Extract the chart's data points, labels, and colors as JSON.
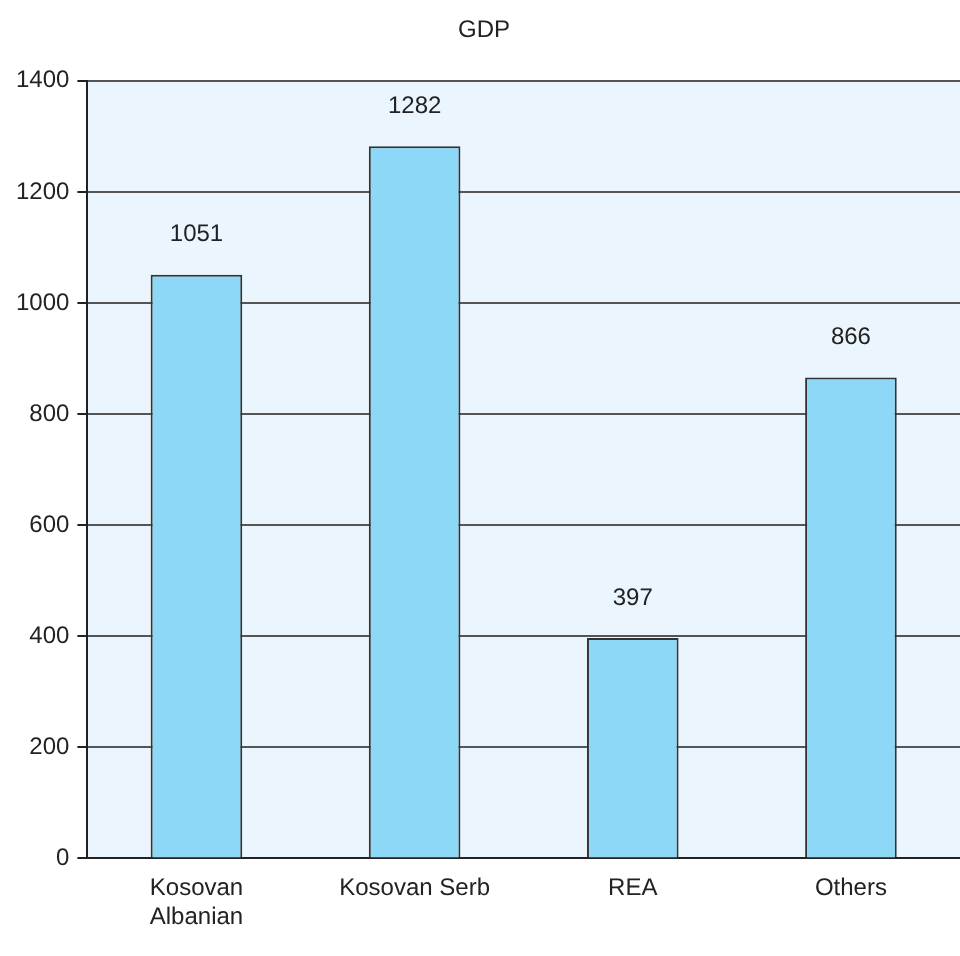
{
  "chart_data": {
    "type": "bar",
    "title": "GDP",
    "categories": [
      "Kosovan Albanian",
      "Kosovan Serb",
      "REA",
      "Others"
    ],
    "values": [
      1051,
      1282,
      397,
      866
    ],
    "color": "#8dd7f7",
    "ylim": [
      0,
      1400
    ],
    "yticks": [
      0,
      200,
      400,
      600,
      800,
      1000,
      1200,
      1400
    ],
    "grid": "y",
    "data_labels": true
  }
}
